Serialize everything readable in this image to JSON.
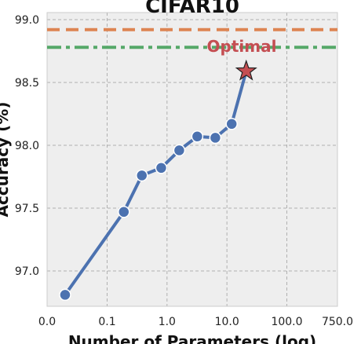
{
  "chart_data": {
    "type": "line",
    "title": "CIFAR10",
    "xlabel": "Number of Parameters (log)",
    "ylabel": "Accuracy (%)",
    "xscale": "symlog",
    "xlim": [
      0.0,
      750.0
    ],
    "ylim": [
      96.8,
      99.0
    ],
    "xticks": [
      0.0,
      0.1,
      1.0,
      10.0,
      100.0,
      750.0
    ],
    "xtick_labels": [
      "0.0",
      "0.1",
      "1.0",
      "10.0",
      "100.0",
      "750.0"
    ],
    "yticks": [
      97.0,
      97.5,
      98.0,
      98.5,
      99.0
    ],
    "ytick_labels": [
      "97.0",
      "97.5",
      "98.0",
      "98.5",
      "99.0"
    ],
    "grid": true,
    "series": [
      {
        "color": "#4c72b0",
        "x": [
          0.03,
          0.19,
          0.38,
          0.8,
          1.6,
          3.2,
          6.4,
          12.0
        ],
        "y": [
          96.81,
          97.47,
          97.76,
          97.82,
          97.96,
          98.07,
          98.06,
          98.17
        ]
      }
    ],
    "optimal": {
      "label": "Optimal",
      "x": 21.0,
      "y": 98.59,
      "color": "#c44e52"
    },
    "reference_lines": [
      {
        "y": 98.92,
        "color": "#dd8452",
        "style": "dashed"
      },
      {
        "y": 98.78,
        "color": "#55a868",
        "style": "dashdot"
      }
    ]
  }
}
